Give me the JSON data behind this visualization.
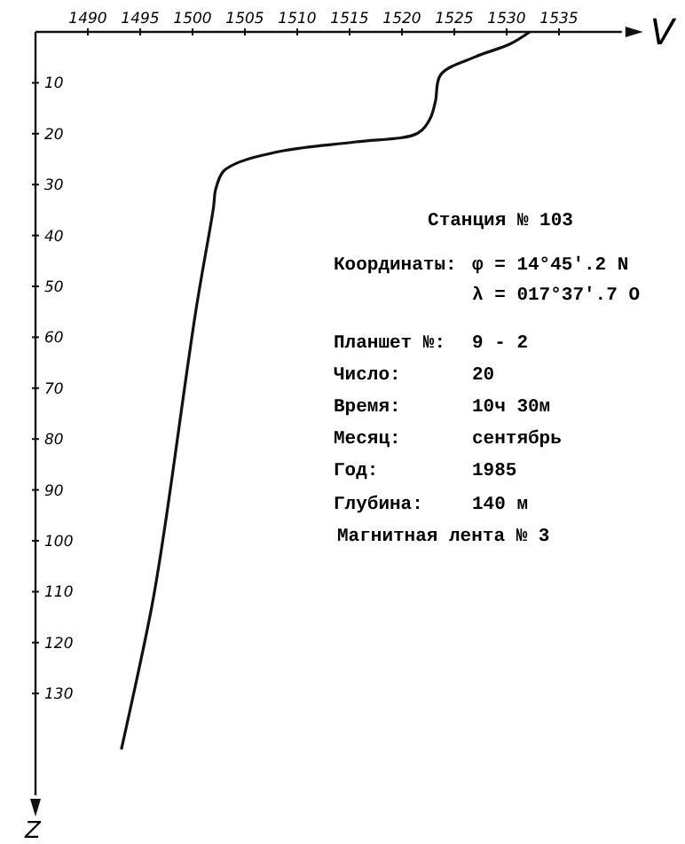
{
  "chart_data": {
    "type": "line",
    "xlabel": "V",
    "ylabel": "Z",
    "xlim": [
      1485,
      1541
    ],
    "xticks": [
      1490,
      1495,
      1500,
      1505,
      1510,
      1515,
      1520,
      1525,
      1530,
      1535
    ],
    "ylim": [
      150,
      0
    ],
    "yticks": [
      10,
      20,
      30,
      40,
      50,
      60,
      70,
      80,
      90,
      100,
      110,
      120,
      130
    ],
    "series": [
      {
        "color": "#111111",
        "x": [
          1532.2,
          1530.3,
          1527,
          1523.7,
          1523.2,
          1522.7,
          1521.5,
          1515.6,
          1508.8,
          1504.2,
          1502.9,
          1502.2,
          1502,
          1500.3,
          1497.3,
          1496.1,
          1493.2
        ],
        "values": [
          0,
          2.4,
          4.9,
          8.4,
          13.6,
          17,
          19.9,
          21.6,
          23.3,
          25.8,
          27.5,
          31,
          34.5,
          55,
          98,
          113,
          141
        ]
      }
    ],
    "grid": false,
    "marker": "none",
    "line_style": "solid",
    "annotations": [
      "Станция № 103",
      "Координаты:",
      "φ = 14°45′.2 N",
      "λ = 017°37′.7 O",
      "Планшет №:",
      "9 - 2",
      "Число:",
      "20",
      "Время:",
      "10ч 30м",
      "Месяц:",
      "сентябрь",
      "Год:",
      "1985",
      "Глубина:",
      "140 м",
      "Магнитная лента № 3"
    ]
  }
}
